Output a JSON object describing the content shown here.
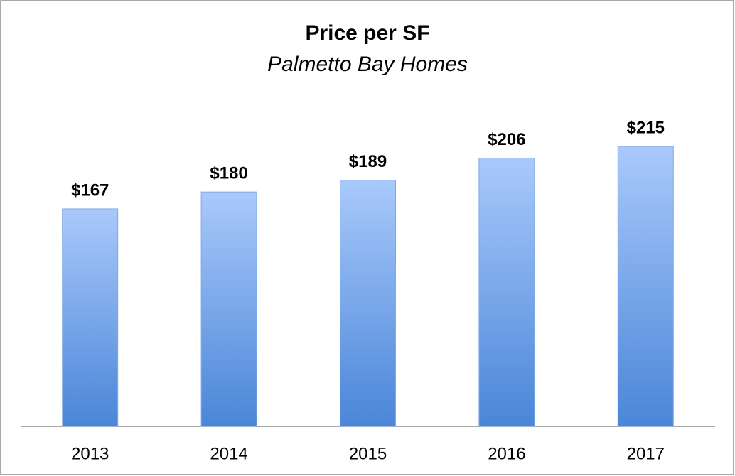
{
  "chart_data": {
    "type": "bar",
    "title": "Price per SF",
    "subtitle": "Palmetto Bay Homes",
    "categories": [
      "2013",
      "2014",
      "2015",
      "2016",
      "2017"
    ],
    "values": [
      167,
      180,
      189,
      206,
      215
    ],
    "value_labels": [
      "$167",
      "$180",
      "$189",
      "$206",
      "$215"
    ],
    "color": "#4a86d8"
  }
}
